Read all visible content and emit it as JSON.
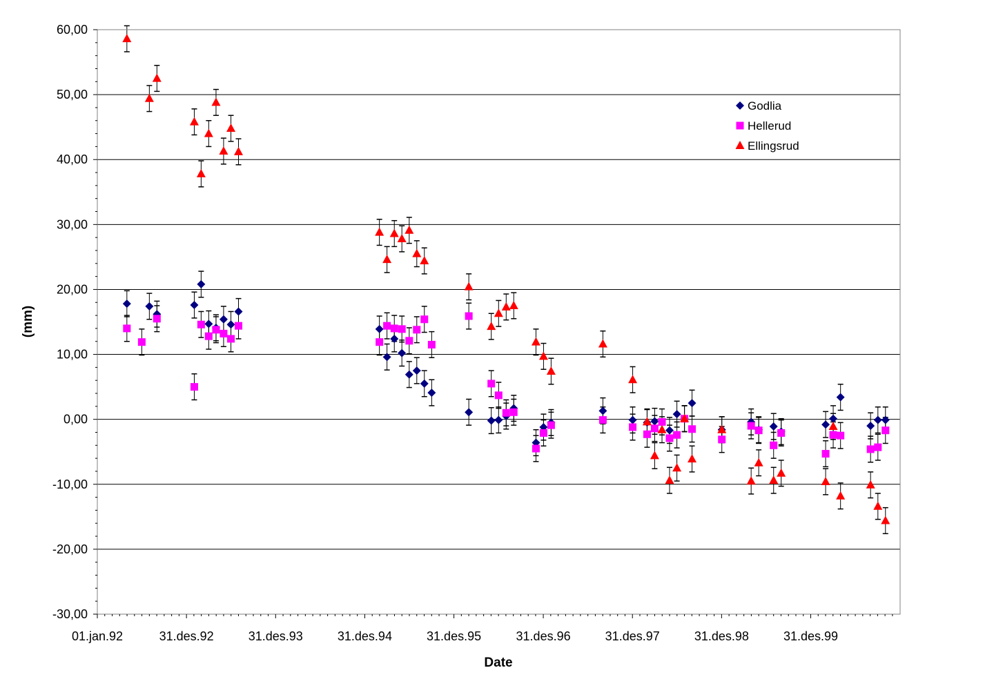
{
  "chart_data": {
    "type": "scatter",
    "title": "",
    "xlabel": "Date",
    "ylabel": "(mm)",
    "x_axis_kind": "date",
    "xlim": [
      "1992-01-01",
      "2000-12-31"
    ],
    "ylim": [
      -30,
      60
    ],
    "y_tick_step": 10,
    "y_tick_labels": [
      "60,00",
      "50,00",
      "40,00",
      "30,00",
      "20,00",
      "10,00",
      "0,00",
      "-10,00",
      "-20,00",
      "-30,00"
    ],
    "x_tick_labels": [
      "01.jan.92",
      "31.des.92",
      "31.des.93",
      "31.des.94",
      "31.des.95",
      "31.des.96",
      "31.des.97",
      "31.des.98",
      "31.des.99"
    ],
    "x_tick_dates": [
      "1992-01-01",
      "1992-12-31",
      "1993-12-31",
      "1994-12-31",
      "1995-12-31",
      "1996-12-31",
      "1997-12-31",
      "1998-12-31",
      "1999-12-31"
    ],
    "grid": "horizontal major lines",
    "legend_position": "top-right",
    "error_bar": 2,
    "series": [
      {
        "name": "Godlia",
        "color": "#000080",
        "marker": "diamond",
        "points": [
          [
            "1992-05-01",
            17.8
          ],
          [
            "1992-08-01",
            17.4
          ],
          [
            "1992-09-01",
            16.2
          ],
          [
            "1993-02-01",
            17.6
          ],
          [
            "1993-03-01",
            20.8
          ],
          [
            "1993-04-01",
            14.7
          ],
          [
            "1993-05-01",
            14.1
          ],
          [
            "1993-06-01",
            15.4
          ],
          [
            "1993-07-01",
            14.6
          ],
          [
            "1993-08-01",
            16.6
          ],
          [
            "1995-03-01",
            13.9
          ],
          [
            "1995-04-01",
            9.6
          ],
          [
            "1995-05-01",
            12.4
          ],
          [
            "1995-06-01",
            10.2
          ],
          [
            "1995-07-01",
            6.9
          ],
          [
            "1995-08-01",
            7.5
          ],
          [
            "1995-09-01",
            5.5
          ],
          [
            "1995-10-01",
            4.1
          ],
          [
            "1996-03-01",
            1.1
          ],
          [
            "1996-06-01",
            -0.2
          ],
          [
            "1996-07-01",
            -0.1
          ],
          [
            "1996-08-01",
            0.5
          ],
          [
            "1996-09-01",
            1.7
          ],
          [
            "1996-12-01",
            -3.6
          ],
          [
            "1997-01-01",
            -1.2
          ],
          [
            "1997-02-01",
            -0.5
          ],
          [
            "1997-09-01",
            1.3
          ],
          [
            "1998-01-01",
            -0.1
          ],
          [
            "1998-03-01",
            -0.5
          ],
          [
            "1998-04-01",
            -0.3
          ],
          [
            "1998-06-01",
            -1.7
          ],
          [
            "1998-07-01",
            0.8
          ],
          [
            "1998-08-01",
            0.1
          ],
          [
            "1998-09-01",
            2.5
          ],
          [
            "1999-01-01",
            -1.6
          ],
          [
            "1999-05-01",
            -0.4
          ],
          [
            "1999-06-01",
            -1.6
          ],
          [
            "1999-08-01",
            -1.1
          ],
          [
            "1999-09-01",
            -1.9
          ],
          [
            "2000-03-01",
            -0.8
          ],
          [
            "2000-04-01",
            0.1
          ],
          [
            "2000-05-01",
            3.4
          ],
          [
            "2000-09-01",
            -1.0
          ],
          [
            "2000-10-01",
            -0.1
          ],
          [
            "2000-11-01",
            -0.1
          ]
        ]
      },
      {
        "name": "Hellerud",
        "color": "#ff00ff",
        "marker": "square",
        "points": [
          [
            "1992-05-01",
            14.0
          ],
          [
            "1992-07-01",
            11.9
          ],
          [
            "1992-09-01",
            15.5
          ],
          [
            "1993-02-01",
            5.0
          ],
          [
            "1993-03-01",
            14.6
          ],
          [
            "1993-04-01",
            12.8
          ],
          [
            "1993-05-01",
            13.8
          ],
          [
            "1993-06-01",
            13.2
          ],
          [
            "1993-07-01",
            12.4
          ],
          [
            "1993-08-01",
            14.4
          ],
          [
            "1995-03-01",
            11.9
          ],
          [
            "1995-04-01",
            14.4
          ],
          [
            "1995-05-01",
            14.0
          ],
          [
            "1995-06-01",
            13.9
          ],
          [
            "1995-07-01",
            12.1
          ],
          [
            "1995-08-01",
            13.8
          ],
          [
            "1995-09-01",
            15.4
          ],
          [
            "1995-10-01",
            11.5
          ],
          [
            "1996-03-01",
            15.9
          ],
          [
            "1996-06-01",
            5.5
          ],
          [
            "1996-07-01",
            3.7
          ],
          [
            "1996-08-01",
            1.0
          ],
          [
            "1996-09-01",
            1.1
          ],
          [
            "1996-12-01",
            -4.5
          ],
          [
            "1997-01-01",
            -2.1
          ],
          [
            "1997-02-01",
            -0.9
          ],
          [
            "1997-09-01",
            -0.1
          ],
          [
            "1998-01-01",
            -1.2
          ],
          [
            "1998-03-01",
            -2.3
          ],
          [
            "1998-04-01",
            -1.4
          ],
          [
            "1998-05-01",
            -0.4
          ],
          [
            "1998-06-01",
            -2.9
          ],
          [
            "1998-07-01",
            -2.4
          ],
          [
            "1998-08-01",
            0.1
          ],
          [
            "1998-09-01",
            -1.5
          ],
          [
            "1999-01-01",
            -3.1
          ],
          [
            "1999-05-01",
            -1.0
          ],
          [
            "1999-06-01",
            -1.7
          ],
          [
            "1999-08-01",
            -4.0
          ],
          [
            "1999-09-01",
            -2.1
          ],
          [
            "2000-03-01",
            -5.3
          ],
          [
            "2000-04-01",
            -2.4
          ],
          [
            "2000-05-01",
            -2.5
          ],
          [
            "2000-09-01",
            -4.6
          ],
          [
            "2000-10-01",
            -4.3
          ],
          [
            "2000-11-01",
            -1.7
          ]
        ]
      },
      {
        "name": "Ellingsrud",
        "color": "#ff0000",
        "marker": "triangle",
        "points": [
          [
            "1992-05-01",
            58.6
          ],
          [
            "1992-08-01",
            49.4
          ],
          [
            "1992-09-01",
            52.5
          ],
          [
            "1993-02-01",
            45.8
          ],
          [
            "1993-03-01",
            37.8
          ],
          [
            "1993-04-01",
            44.0
          ],
          [
            "1993-05-01",
            48.8
          ],
          [
            "1993-06-01",
            41.3
          ],
          [
            "1993-07-01",
            44.8
          ],
          [
            "1993-08-01",
            41.2
          ],
          [
            "1995-03-01",
            28.8
          ],
          [
            "1995-04-01",
            24.6
          ],
          [
            "1995-05-01",
            28.6
          ],
          [
            "1995-06-01",
            27.8
          ],
          [
            "1995-07-01",
            29.1
          ],
          [
            "1995-08-01",
            25.5
          ],
          [
            "1995-09-01",
            24.4
          ],
          [
            "1996-03-01",
            20.4
          ],
          [
            "1996-06-01",
            14.3
          ],
          [
            "1996-07-01",
            16.3
          ],
          [
            "1996-08-01",
            17.3
          ],
          [
            "1996-09-01",
            17.5
          ],
          [
            "1996-12-01",
            11.9
          ],
          [
            "1997-01-01",
            9.7
          ],
          [
            "1997-02-01",
            7.4
          ],
          [
            "1997-09-01",
            11.6
          ],
          [
            "1998-01-01",
            6.1
          ],
          [
            "1998-03-01",
            -0.4
          ],
          [
            "1998-04-01",
            -5.6
          ],
          [
            "1998-05-01",
            -1.6
          ],
          [
            "1998-06-01",
            -9.4
          ],
          [
            "1998-07-01",
            -7.5
          ],
          [
            "1998-08-01",
            0.1
          ],
          [
            "1998-09-01",
            -6.1
          ],
          [
            "1999-01-01",
            -1.6
          ],
          [
            "1999-05-01",
            -9.5
          ],
          [
            "1999-06-01",
            -6.7
          ],
          [
            "1999-08-01",
            -9.4
          ],
          [
            "1999-09-01",
            -8.3
          ],
          [
            "2000-03-01",
            -9.6
          ],
          [
            "2000-04-01",
            -1.1
          ],
          [
            "2000-05-01",
            -11.8
          ],
          [
            "2000-09-01",
            -10.1
          ],
          [
            "2000-10-01",
            -13.4
          ],
          [
            "2000-11-01",
            -15.6
          ]
        ]
      }
    ]
  }
}
